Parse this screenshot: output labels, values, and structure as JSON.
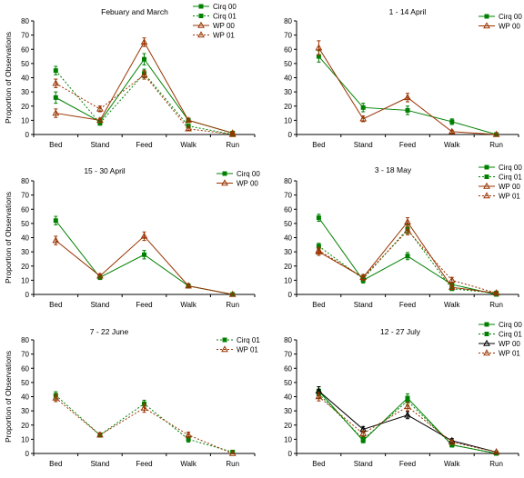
{
  "colors": {
    "cirq00": "#008000",
    "cirq01": "#008000",
    "wp00": "#993300",
    "wp01": "#993300",
    "wp00_panel6": "#000000",
    "axis": "#000000"
  },
  "chart_data": [
    {
      "type": "line",
      "title": "Febuary and March",
      "xlabel": "",
      "ylabel": "Proportion of Observations",
      "categories": [
        "Bed",
        "Stand",
        "Feed",
        "Walk",
        "Run"
      ],
      "ylim": [
        0,
        80
      ],
      "yticks": [
        0,
        10,
        20,
        30,
        40,
        50,
        60,
        70,
        80
      ],
      "grid": false,
      "legend_position": "top-right",
      "series": [
        {
          "name": "Cirq 00",
          "values": [
            26,
            9,
            53,
            10,
            1
          ],
          "errors": [
            4,
            1.5,
            4,
            1.5,
            0.5
          ],
          "style": "solid",
          "marker": "square",
          "color": "#008000"
        },
        {
          "name": "Cirq 01",
          "values": [
            45,
            8,
            43,
            6,
            0
          ],
          "errors": [
            3,
            1.5,
            3,
            1,
            0.3
          ],
          "style": "dotted",
          "marker": "square",
          "color": "#008000"
        },
        {
          "name": "WP 00",
          "values": [
            15,
            10,
            65,
            10,
            1
          ],
          "errors": [
            3,
            1.5,
            3,
            1.5,
            0.5
          ],
          "style": "solid",
          "marker": "triangle",
          "color": "#993300"
        },
        {
          "name": "WP 01",
          "values": [
            36,
            18,
            42,
            4,
            0
          ],
          "errors": [
            3,
            2,
            3,
            1,
            0.3
          ],
          "style": "dotted",
          "marker": "triangle",
          "color": "#993300"
        }
      ]
    },
    {
      "type": "line",
      "title": "1 - 14 April",
      "xlabel": "",
      "ylabel": "",
      "categories": [
        "Bed",
        "Stand",
        "Feed",
        "Walk",
        "Run"
      ],
      "ylim": [
        0,
        80
      ],
      "yticks": [
        0,
        10,
        20,
        30,
        40,
        50,
        60,
        70,
        80
      ],
      "grid": false,
      "legend_position": "top-right",
      "series": [
        {
          "name": "Cirq 00",
          "values": [
            55,
            19,
            17,
            9,
            0
          ],
          "errors": [
            4,
            3,
            3,
            2,
            0.3
          ],
          "style": "solid",
          "marker": "square",
          "color": "#008000"
        },
        {
          "name": "WP 00",
          "values": [
            61,
            11,
            26,
            2,
            0
          ],
          "errors": [
            5,
            2,
            3,
            1,
            0.3
          ],
          "style": "solid",
          "marker": "triangle",
          "color": "#993300"
        }
      ]
    },
    {
      "type": "line",
      "title": "15 - 30 April",
      "xlabel": "",
      "ylabel": "Proportion of Observations",
      "categories": [
        "Bed",
        "Stand",
        "Feed",
        "Walk",
        "Run"
      ],
      "ylim": [
        0,
        80
      ],
      "yticks": [
        0,
        10,
        20,
        30,
        40,
        50,
        60,
        70,
        80
      ],
      "grid": false,
      "legend_position": "top-right",
      "series": [
        {
          "name": "Cirq 00",
          "values": [
            52,
            12,
            28,
            6,
            0
          ],
          "errors": [
            3,
            1.5,
            3,
            1.5,
            0.3
          ],
          "style": "solid",
          "marker": "square",
          "color": "#008000"
        },
        {
          "name": "WP 00",
          "values": [
            38,
            13,
            41,
            6,
            0
          ],
          "errors": [
            3,
            1.5,
            3,
            1.5,
            0.3
          ],
          "style": "solid",
          "marker": "triangle",
          "color": "#993300"
        }
      ]
    },
    {
      "type": "line",
      "title": "3 - 18 May",
      "xlabel": "",
      "ylabel": "",
      "categories": [
        "Bed",
        "Stand",
        "Feed",
        "Walk",
        "Run"
      ],
      "ylim": [
        0,
        80
      ],
      "yticks": [
        0,
        10,
        20,
        30,
        40,
        50,
        60,
        70,
        80
      ],
      "grid": false,
      "legend_position": "top-right",
      "series": [
        {
          "name": "Cirq 00",
          "values": [
            54,
            10,
            27,
            7,
            0
          ],
          "errors": [
            2.5,
            2,
            2.5,
            1.5,
            0.3
          ],
          "style": "solid",
          "marker": "square",
          "color": "#008000"
        },
        {
          "name": "Cirq 01",
          "values": [
            34,
            11,
            46,
            4,
            1
          ],
          "errors": [
            2,
            2,
            3,
            1,
            0.3
          ],
          "style": "dotted",
          "marker": "square",
          "color": "#008000"
        },
        {
          "name": "WP 00",
          "values": [
            30,
            12,
            51,
            5,
            1
          ],
          "errors": [
            2.5,
            2,
            3,
            1.5,
            0.3
          ],
          "style": "solid",
          "marker": "triangle",
          "color": "#993300"
        },
        {
          "name": "WP 01",
          "values": [
            31,
            12,
            45,
            10,
            1
          ],
          "errors": [
            2,
            2,
            3,
            2,
            0.3
          ],
          "style": "dotted",
          "marker": "triangle",
          "color": "#993300"
        }
      ]
    },
    {
      "type": "line",
      "title": "7 - 22 June",
      "xlabel": "",
      "ylabel": "Proportion of Observations",
      "categories": [
        "Bed",
        "Stand",
        "Feed",
        "Walk",
        "Run"
      ],
      "ylim": [
        0,
        80
      ],
      "yticks": [
        0,
        10,
        20,
        30,
        40,
        50,
        60,
        70,
        80
      ],
      "grid": false,
      "legend_position": "top-right",
      "series": [
        {
          "name": "Cirq 01",
          "values": [
            41,
            13,
            35,
            10,
            1
          ],
          "errors": [
            2.5,
            1.5,
            2.5,
            2,
            0.3
          ],
          "style": "dotted",
          "marker": "square",
          "color": "#008000"
        },
        {
          "name": "WP 01",
          "values": [
            39,
            13,
            32,
            13,
            0
          ],
          "errors": [
            2.5,
            1.5,
            3,
            2,
            0.3
          ],
          "style": "dotted",
          "marker": "triangle",
          "color": "#993300"
        }
      ]
    },
    {
      "type": "line",
      "title": "12 - 27 July",
      "xlabel": "",
      "ylabel": "",
      "categories": [
        "Bed",
        "Stand",
        "Feed",
        "Walk",
        "Run"
      ],
      "ylim": [
        0,
        80
      ],
      "yticks": [
        0,
        10,
        20,
        30,
        40,
        50,
        60,
        70,
        80
      ],
      "grid": false,
      "legend_position": "top-right",
      "series": [
        {
          "name": "Cirq 00",
          "values": [
            44,
            9,
            39,
            6,
            0
          ],
          "errors": [
            3,
            1.5,
            3,
            1.5,
            0.3
          ],
          "style": "solid",
          "marker": "square",
          "color": "#008000"
        },
        {
          "name": "Cirq 01",
          "values": [
            42,
            10,
            37,
            6,
            0
          ],
          "errors": [
            3,
            1.5,
            3,
            1.5,
            0.3
          ],
          "style": "dotted",
          "marker": "square",
          "color": "#008000"
        },
        {
          "name": "WP 00",
          "values": [
            44,
            17,
            27,
            9,
            1
          ],
          "errors": [
            3,
            2,
            2.5,
            1.5,
            0.3
          ],
          "style": "solid",
          "marker": "triangle",
          "color": "#000000"
        },
        {
          "name": "WP 01",
          "values": [
            40,
            14,
            33,
            8,
            1
          ],
          "errors": [
            3,
            2,
            3,
            1.5,
            0.3
          ],
          "style": "dotted",
          "marker": "triangle",
          "color": "#993300"
        }
      ]
    }
  ]
}
